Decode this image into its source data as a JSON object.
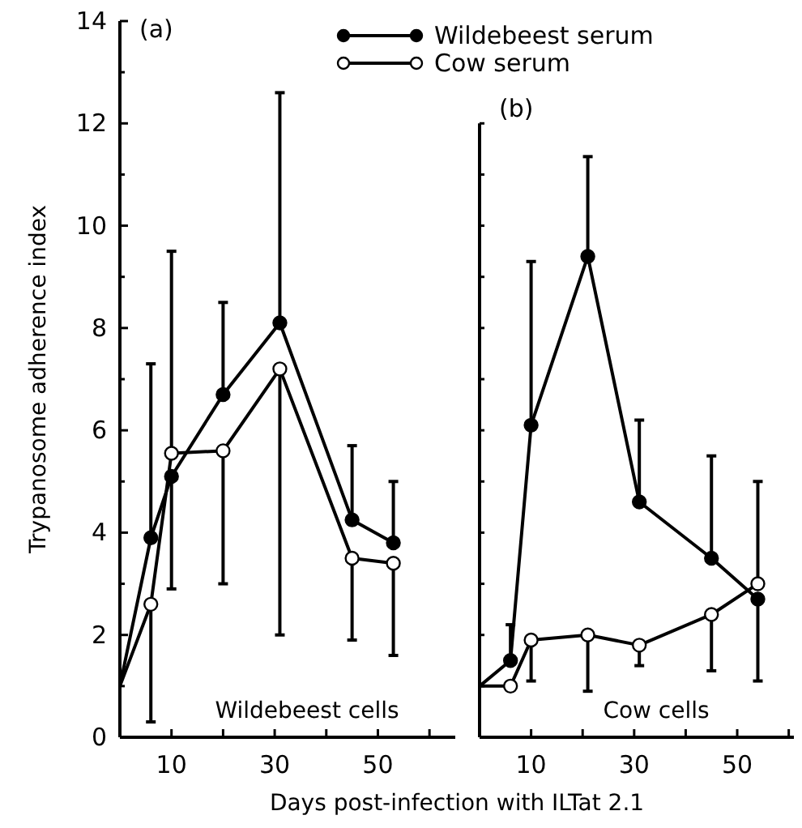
{
  "chart_data": [
    {
      "type": "line",
      "title": "(a)",
      "ylabel": "Trypanosome adherence index",
      "xlabel": "Days post-infection with ILTat 2.1",
      "xlim": [
        0,
        65
      ],
      "xticks": [
        {
          "value": 10,
          "label": "10"
        },
        {
          "value": 20,
          "label": null
        },
        {
          "value": 30,
          "label": "30"
        },
        {
          "value": 40,
          "label": null
        },
        {
          "value": 50,
          "label": "50"
        },
        {
          "value": 60,
          "label": null
        }
      ],
      "ylim": [
        0,
        14
      ],
      "yticks": [
        0,
        {
          "value": 1,
          "label": null
        },
        2,
        {
          "value": 3,
          "label": null
        },
        4,
        {
          "value": 5,
          "label": null
        },
        6,
        {
          "value": 7,
          "label": null
        },
        8,
        {
          "value": 9,
          "label": null
        },
        10,
        {
          "value": 11,
          "label": null
        },
        12,
        {
          "value": 13,
          "label": null
        },
        14
      ],
      "marker": "circle",
      "line_style": "solid",
      "legend": "top right",
      "grid": false,
      "annotations": [
        "Wildebeest cells"
      ],
      "series": [
        {
          "name": "Wildebeest serum",
          "color": "#000000",
          "x": [
            0,
            6,
            10,
            20,
            31,
            45,
            53
          ],
          "values": [
            1,
            3.9,
            5.1,
            6.7,
            8.1,
            4.25,
            3.8
          ],
          "errors": [
            null,
            [
              3.9,
              7.3
            ],
            [
              2.9,
              5.1
            ],
            [
              6.7,
              8.5
            ],
            [
              8.1,
              12.6
            ],
            [
              4.25,
              5.7
            ],
            [
              3.8,
              5.0
            ]
          ]
        },
        {
          "name": "Cow serum",
          "color": "#ffffff",
          "x": [
            0,
            6,
            10,
            20,
            31,
            45,
            53
          ],
          "values": [
            1,
            2.6,
            5.55,
            5.6,
            7.2,
            3.5,
            3.4
          ],
          "errors": [
            null,
            [
              0.3,
              2.6
            ],
            [
              5.55,
              9.5
            ],
            [
              3.0,
              5.6
            ],
            [
              2.0,
              7.2
            ],
            [
              1.9,
              3.5
            ],
            [
              1.6,
              3.4
            ]
          ]
        }
      ]
    },
    {
      "type": "line",
      "title": "(b)",
      "xlim": [
        0,
        61
      ],
      "xticks": [
        {
          "value": 10,
          "label": "10"
        },
        {
          "value": 20,
          "label": null
        },
        {
          "value": 30,
          "label": "30"
        },
        {
          "value": 40,
          "label": null
        },
        {
          "value": 50,
          "label": "50"
        },
        {
          "value": 60,
          "label": null
        }
      ],
      "ylim": [
        0,
        14
      ],
      "yticks": [
        {
          "value": 0,
          "label": null
        },
        {
          "value": 1,
          "label": null
        },
        {
          "value": 2,
          "label": null
        },
        {
          "value": 3,
          "label": null
        },
        {
          "value": 4,
          "label": null
        },
        {
          "value": 5,
          "label": null
        },
        {
          "value": 6,
          "label": null
        },
        {
          "value": 7,
          "label": null
        },
        {
          "value": 8,
          "label": null
        },
        {
          "value": 9,
          "label": null
        },
        {
          "value": 10,
          "label": null
        },
        {
          "value": 11,
          "label": null
        },
        {
          "value": 12,
          "label": null
        }
      ],
      "tick_labels": "x",
      "marker": "circle",
      "line_style": "solid",
      "grid": false,
      "annotations": [
        "Cow cells"
      ],
      "series": [
        {
          "color": "#000000",
          "x": [
            0,
            6,
            10,
            21,
            31,
            45,
            54
          ],
          "values": [
            1,
            1.5,
            6.1,
            9.4,
            4.6,
            3.5,
            2.7
          ],
          "errors": [
            null,
            [
              1.5,
              2.2
            ],
            [
              6.1,
              9.3
            ],
            [
              9.4,
              11.35
            ],
            [
              4.6,
              6.2
            ],
            [
              3.5,
              5.5
            ],
            [
              1.1,
              2.7
            ]
          ]
        },
        {
          "color": "#ffffff",
          "x": [
            0,
            6,
            10,
            21,
            31,
            45,
            54
          ],
          "values": [
            1,
            1,
            1.9,
            2.0,
            1.8,
            2.4,
            3.0
          ],
          "errors": [
            null,
            null,
            [
              1.1,
              1.9
            ],
            [
              0.9,
              2.0
            ],
            [
              1.4,
              1.8
            ],
            [
              1.3,
              2.4
            ],
            [
              3.0,
              5.0
            ]
          ]
        }
      ]
    }
  ]
}
